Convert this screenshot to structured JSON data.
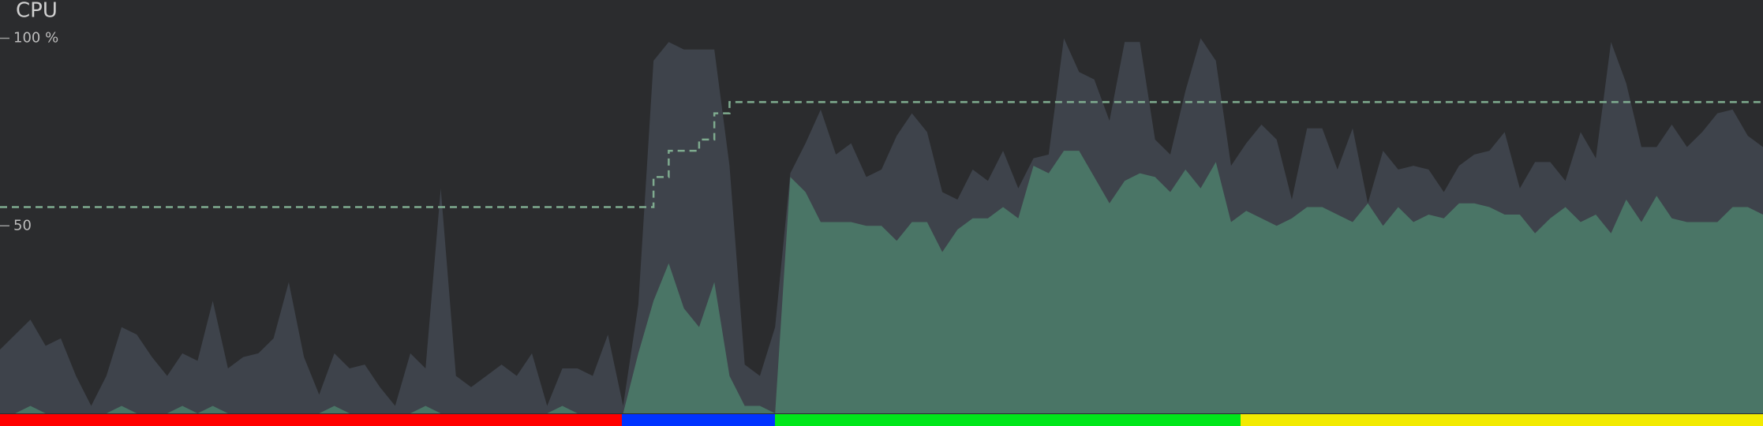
{
  "chart_data": {
    "type": "area",
    "title": "CPU",
    "ylim": [
      0,
      100
    ],
    "yticks": [
      {
        "value": 100,
        "label": "100 %"
      },
      50
    ],
    "series": [
      {
        "color": "#3e434b",
        "values": [
          17,
          21,
          25,
          18,
          20,
          10,
          2,
          10,
          23,
          21,
          15,
          10,
          16,
          14,
          30,
          12,
          15,
          16,
          20,
          35,
          15,
          5,
          16,
          12,
          13,
          7,
          2,
          16,
          12,
          60,
          10,
          7,
          10,
          13,
          10,
          16,
          2,
          12,
          12,
          10,
          21,
          2,
          29,
          94,
          99,
          97,
          97,
          97,
          66,
          13,
          10,
          23,
          64,
          72,
          81,
          69,
          72,
          63,
          65,
          74,
          80,
          75,
          59,
          57,
          65,
          62,
          70,
          60,
          68,
          69,
          100,
          91,
          89,
          78,
          99,
          99,
          73,
          69,
          86,
          100,
          94,
          66,
          72,
          77,
          73,
          57,
          76,
          76,
          65,
          76,
          56,
          70,
          65,
          66,
          65,
          59,
          66,
          69,
          70,
          75,
          60,
          67,
          67,
          62,
          75,
          68,
          99,
          88,
          71,
          71,
          77,
          71,
          75,
          80,
          81,
          74,
          71
        ]
      },
      {
        "color": "#4a7566",
        "values": [
          0,
          0,
          2,
          0,
          0,
          0,
          0,
          0,
          2,
          0,
          0,
          0,
          2,
          0,
          2,
          0,
          0,
          0,
          0,
          0,
          0,
          0,
          2,
          0,
          0,
          0,
          0,
          0,
          2,
          0,
          0,
          0,
          0,
          0,
          0,
          0,
          0,
          2,
          0,
          0,
          0,
          0,
          16,
          30,
          40,
          28,
          23,
          35,
          10,
          2,
          2,
          0,
          63,
          59,
          51,
          51,
          51,
          50,
          50,
          46,
          51,
          51,
          43,
          49,
          52,
          52,
          55,
          52,
          66,
          64,
          70,
          70,
          63,
          56,
          62,
          64,
          63,
          59,
          65,
          60,
          67,
          51,
          54,
          52,
          50,
          52,
          55,
          55,
          53,
          51,
          56,
          50,
          55,
          51,
          53,
          52,
          56,
          56,
          55,
          53,
          53,
          48,
          52,
          55,
          51,
          53,
          48,
          57,
          51,
          58,
          52,
          51,
          51,
          51,
          55,
          55,
          53
        ]
      },
      {
        "color": "#7fab8f",
        "dashed": true,
        "step": true,
        "values": [
          55,
          55,
          55,
          55,
          55,
          55,
          55,
          55,
          55,
          55,
          55,
          55,
          55,
          55,
          55,
          55,
          55,
          55,
          55,
          55,
          55,
          55,
          55,
          55,
          55,
          55,
          55,
          55,
          55,
          55,
          55,
          55,
          55,
          55,
          55,
          55,
          55,
          55,
          55,
          55,
          55,
          55,
          55,
          63,
          70,
          70,
          73,
          80,
          83,
          83,
          83,
          83,
          83,
          83,
          83,
          83,
          83,
          83,
          83,
          83,
          83,
          83,
          83,
          83,
          83,
          83,
          83,
          83,
          83,
          83,
          83,
          83,
          83,
          83,
          83,
          83,
          83,
          83,
          83,
          83,
          83,
          83,
          83,
          83,
          83,
          83,
          83,
          83,
          83,
          83,
          83,
          83,
          83,
          83,
          83,
          83,
          83,
          83,
          83,
          83,
          83,
          83,
          83,
          83,
          83,
          83,
          83,
          83,
          83,
          83,
          83,
          83,
          83,
          83,
          83,
          83,
          83
        ]
      }
    ]
  }
}
